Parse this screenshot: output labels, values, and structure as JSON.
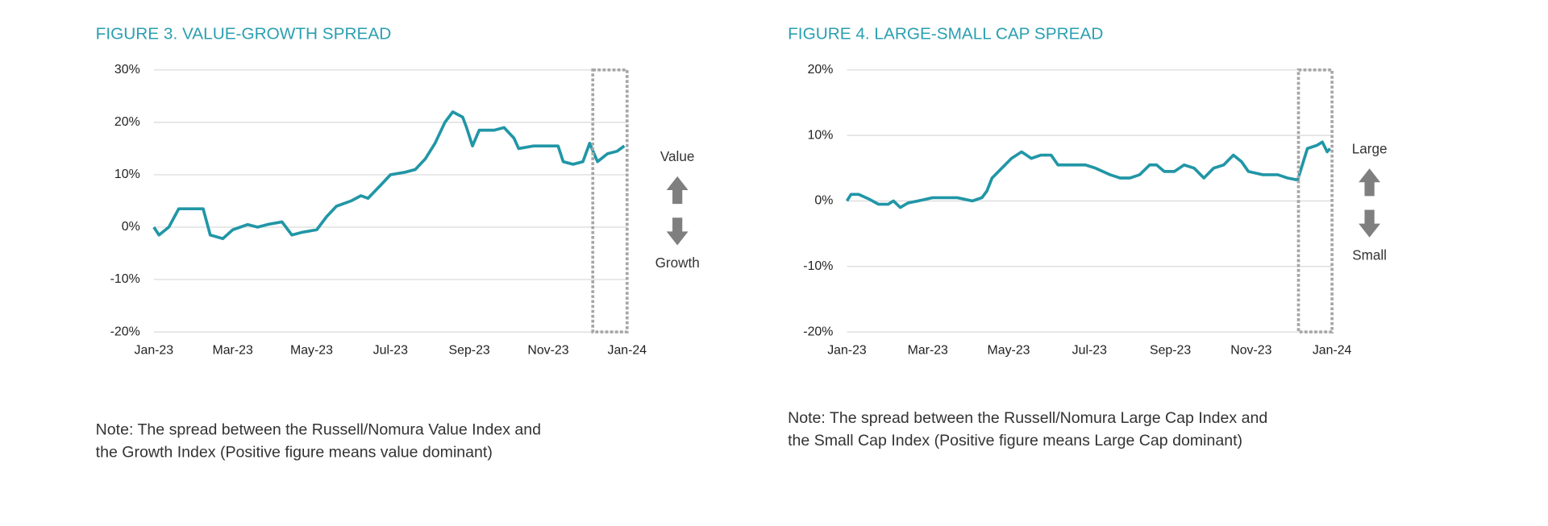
{
  "chart_data": [
    {
      "type": "line",
      "title": "FIGURE 3. VALUE-GROWTH SPREAD",
      "note": [
        "Note: The spread between the Russell/Nomura Value Index and",
        "the Growth Index (Positive figure means value dominant)"
      ],
      "annotations": [
        "Value",
        "Growth"
      ],
      "xlim": [
        0,
        12
      ],
      "xticks": [
        {
          "value": 0,
          "label": "Jan-23"
        },
        {
          "value": 2,
          "label": "Mar-23"
        },
        {
          "value": 4,
          "label": "May-23"
        },
        {
          "value": 6,
          "label": "Jul-23"
        },
        {
          "value": 8,
          "label": "Sep-23"
        },
        {
          "value": 10,
          "label": "Nov-23"
        },
        {
          "value": 12,
          "label": "Jan-24"
        }
      ],
      "ylim": [
        -20,
        30
      ],
      "yticks": [
        {
          "value": -20,
          "label": "-20%"
        },
        {
          "value": -10,
          "label": "-10%"
        },
        {
          "value": 0,
          "label": "0%"
        },
        {
          "value": 10,
          "label": "10%"
        },
        {
          "value": 20,
          "label": "20%"
        },
        {
          "value": 30,
          "label": "30%"
        }
      ],
      "grid": true,
      "highlight_x": [
        11.13,
        12
      ],
      "x": [
        0,
        0.13,
        0.38,
        0.63,
        0.88,
        1.13,
        1.25,
        1.43,
        1.75,
        2,
        2.38,
        2.63,
        2.88,
        3.25,
        3.5,
        3.75,
        4.13,
        4.38,
        4.63,
        5,
        5.25,
        5.43,
        5.75,
        6,
        6.38,
        6.63,
        6.88,
        7.13,
        7.38,
        7.58,
        7.83,
        7.93,
        8.08,
        8.25,
        8.63,
        8.88,
        9.13,
        9.25,
        9.63,
        10,
        10.25,
        10.38,
        10.63,
        10.88,
        11.05,
        11.25,
        11.5,
        11.75,
        11.93
      ],
      "series": [
        {
          "color": "#2196a6",
          "values": [
            0,
            -1.5,
            0,
            3.5,
            3.5,
            3.5,
            3.5,
            -1.5,
            -2.2,
            -0.5,
            0.5,
            0,
            0.5,
            1,
            -1.5,
            -1,
            -0.5,
            2,
            4,
            5,
            6,
            5.5,
            8,
            10,
            10.5,
            11,
            13,
            16,
            20,
            22,
            21,
            19,
            15.5,
            18.5,
            18.5,
            19,
            17,
            15,
            15.5,
            15.5,
            15.5,
            12.5,
            12,
            12.5,
            16,
            12.5,
            14,
            14.5,
            15.5
          ]
        }
      ]
    },
    {
      "type": "line",
      "title": "FIGURE 4. LARGE-SMALL CAP SPREAD",
      "note": [
        "Note: The spread between the Russell/Nomura Large Cap Index and",
        "the Small Cap Index (Positive figure means Large Cap dominant)"
      ],
      "annotations": [
        "Large",
        "Small"
      ],
      "xlim": [
        0,
        12
      ],
      "xticks": [
        {
          "value": 0,
          "label": "Jan-23"
        },
        {
          "value": 2,
          "label": "Mar-23"
        },
        {
          "value": 4,
          "label": "May-23"
        },
        {
          "value": 6,
          "label": "Jul-23"
        },
        {
          "value": 8,
          "label": "Sep-23"
        },
        {
          "value": 10,
          "label": "Nov-23"
        },
        {
          "value": 12,
          "label": "Jan-24"
        }
      ],
      "ylim": [
        -20,
        20
      ],
      "yticks": [
        {
          "value": -20,
          "label": "-20%"
        },
        {
          "value": -10,
          "label": "-10%"
        },
        {
          "value": 0,
          "label": "0%"
        },
        {
          "value": 10,
          "label": "10%"
        },
        {
          "value": 20,
          "label": "20%"
        }
      ],
      "grid": true,
      "highlight_x": [
        11.17,
        12
      ],
      "x": [
        0,
        0.1,
        0.29,
        0.54,
        0.78,
        1.02,
        1.15,
        1.32,
        1.51,
        1.76,
        2.12,
        2.49,
        2.73,
        3.1,
        3.34,
        3.46,
        3.59,
        3.83,
        4.07,
        4.32,
        4.56,
        4.8,
        5.05,
        5.22,
        5.54,
        5.9,
        6.15,
        6.51,
        6.76,
        7,
        7.24,
        7.49,
        7.66,
        7.85,
        8.1,
        8.34,
        8.59,
        8.83,
        9.07,
        9.32,
        9.56,
        9.76,
        9.93,
        10.29,
        10.66,
        10.9,
        11.15,
        11.39,
        11.63,
        11.76,
        11.88,
        11.95
      ],
      "series": [
        {
          "color": "#2196a6",
          "values": [
            0,
            1,
            1,
            0.3,
            -0.5,
            -0.5,
            0,
            -1,
            -0.3,
            0,
            0.5,
            0.5,
            0.5,
            0,
            0.5,
            1.5,
            3.5,
            5,
            6.5,
            7.5,
            6.5,
            7,
            7,
            5.5,
            5.5,
            5.5,
            5,
            4,
            3.5,
            3.5,
            4,
            5.5,
            5.5,
            4.5,
            4.5,
            5.5,
            5,
            3.5,
            5,
            5.5,
            7,
            6,
            4.5,
            4,
            4,
            3.5,
            3.2,
            8,
            8.5,
            9,
            7.5,
            8
          ]
        }
      ]
    }
  ]
}
